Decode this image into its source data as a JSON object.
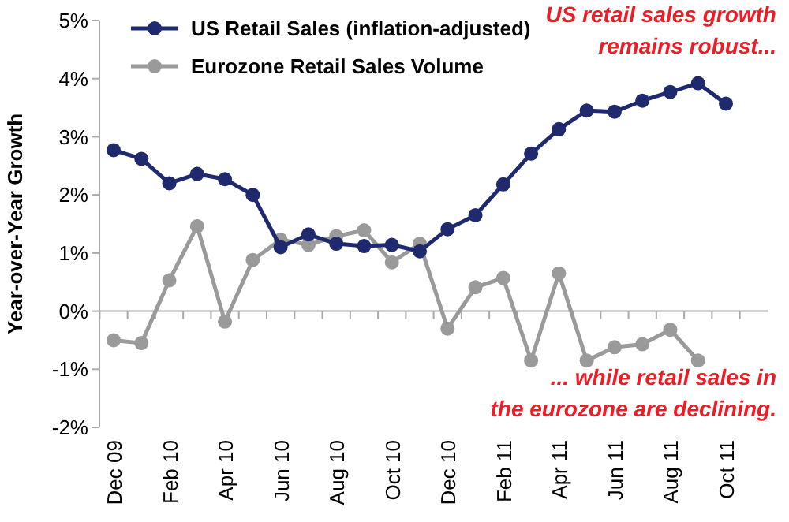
{
  "chart_data": {
    "type": "line",
    "ylabel": "Year-over-Year Growth",
    "categories": [
      "Dec 09",
      null,
      "Feb 10",
      null,
      "Apr 10",
      null,
      "Jun 10",
      null,
      "Aug 10",
      null,
      "Oct 10",
      null,
      "Dec 10",
      null,
      "Feb 11",
      null,
      "Apr 11",
      null,
      "Jun 11",
      null,
      "Aug 11",
      null,
      "Oct 11"
    ],
    "series": [
      {
        "name": "US Retail Sales (inflation-adjusted)",
        "color": "#1f2a6e",
        "values": [
          2.77,
          2.62,
          2.2,
          2.36,
          2.27,
          2.0,
          1.1,
          1.32,
          1.16,
          1.12,
          1.14,
          1.03,
          1.41,
          1.65,
          2.18,
          2.71,
          3.13,
          3.45,
          3.43,
          3.62,
          3.77,
          3.92,
          3.57
        ]
      },
      {
        "name": "Eurozone Retail Sales Volume",
        "color": "#9a9a9a",
        "values": [
          -0.5,
          -0.55,
          0.53,
          1.46,
          -0.18,
          0.88,
          1.23,
          1.14,
          1.29,
          1.39,
          0.84,
          1.16,
          -0.3,
          0.41,
          0.57,
          -0.85,
          0.65,
          -0.85,
          -0.62,
          -0.57,
          -0.32,
          -0.85,
          null
        ]
      }
    ],
    "ylim": [
      -2,
      5
    ],
    "yticks": [
      {
        "value": -2,
        "label": "-2%"
      },
      {
        "value": -1,
        "label": "-1%"
      },
      {
        "value": 0,
        "label": "0%"
      },
      {
        "value": 1,
        "label": "1%"
      },
      {
        "value": 2,
        "label": "2%"
      },
      {
        "value": 3,
        "label": "3%"
      },
      {
        "value": 4,
        "label": "4%"
      },
      {
        "value": 5,
        "label": "5%"
      }
    ],
    "marker": "circle",
    "legend": "top left",
    "annotations": [
      "US retail sales growth\nremains robust...",
      "... while retail sales in\nthe eurozone are declining."
    ]
  }
}
